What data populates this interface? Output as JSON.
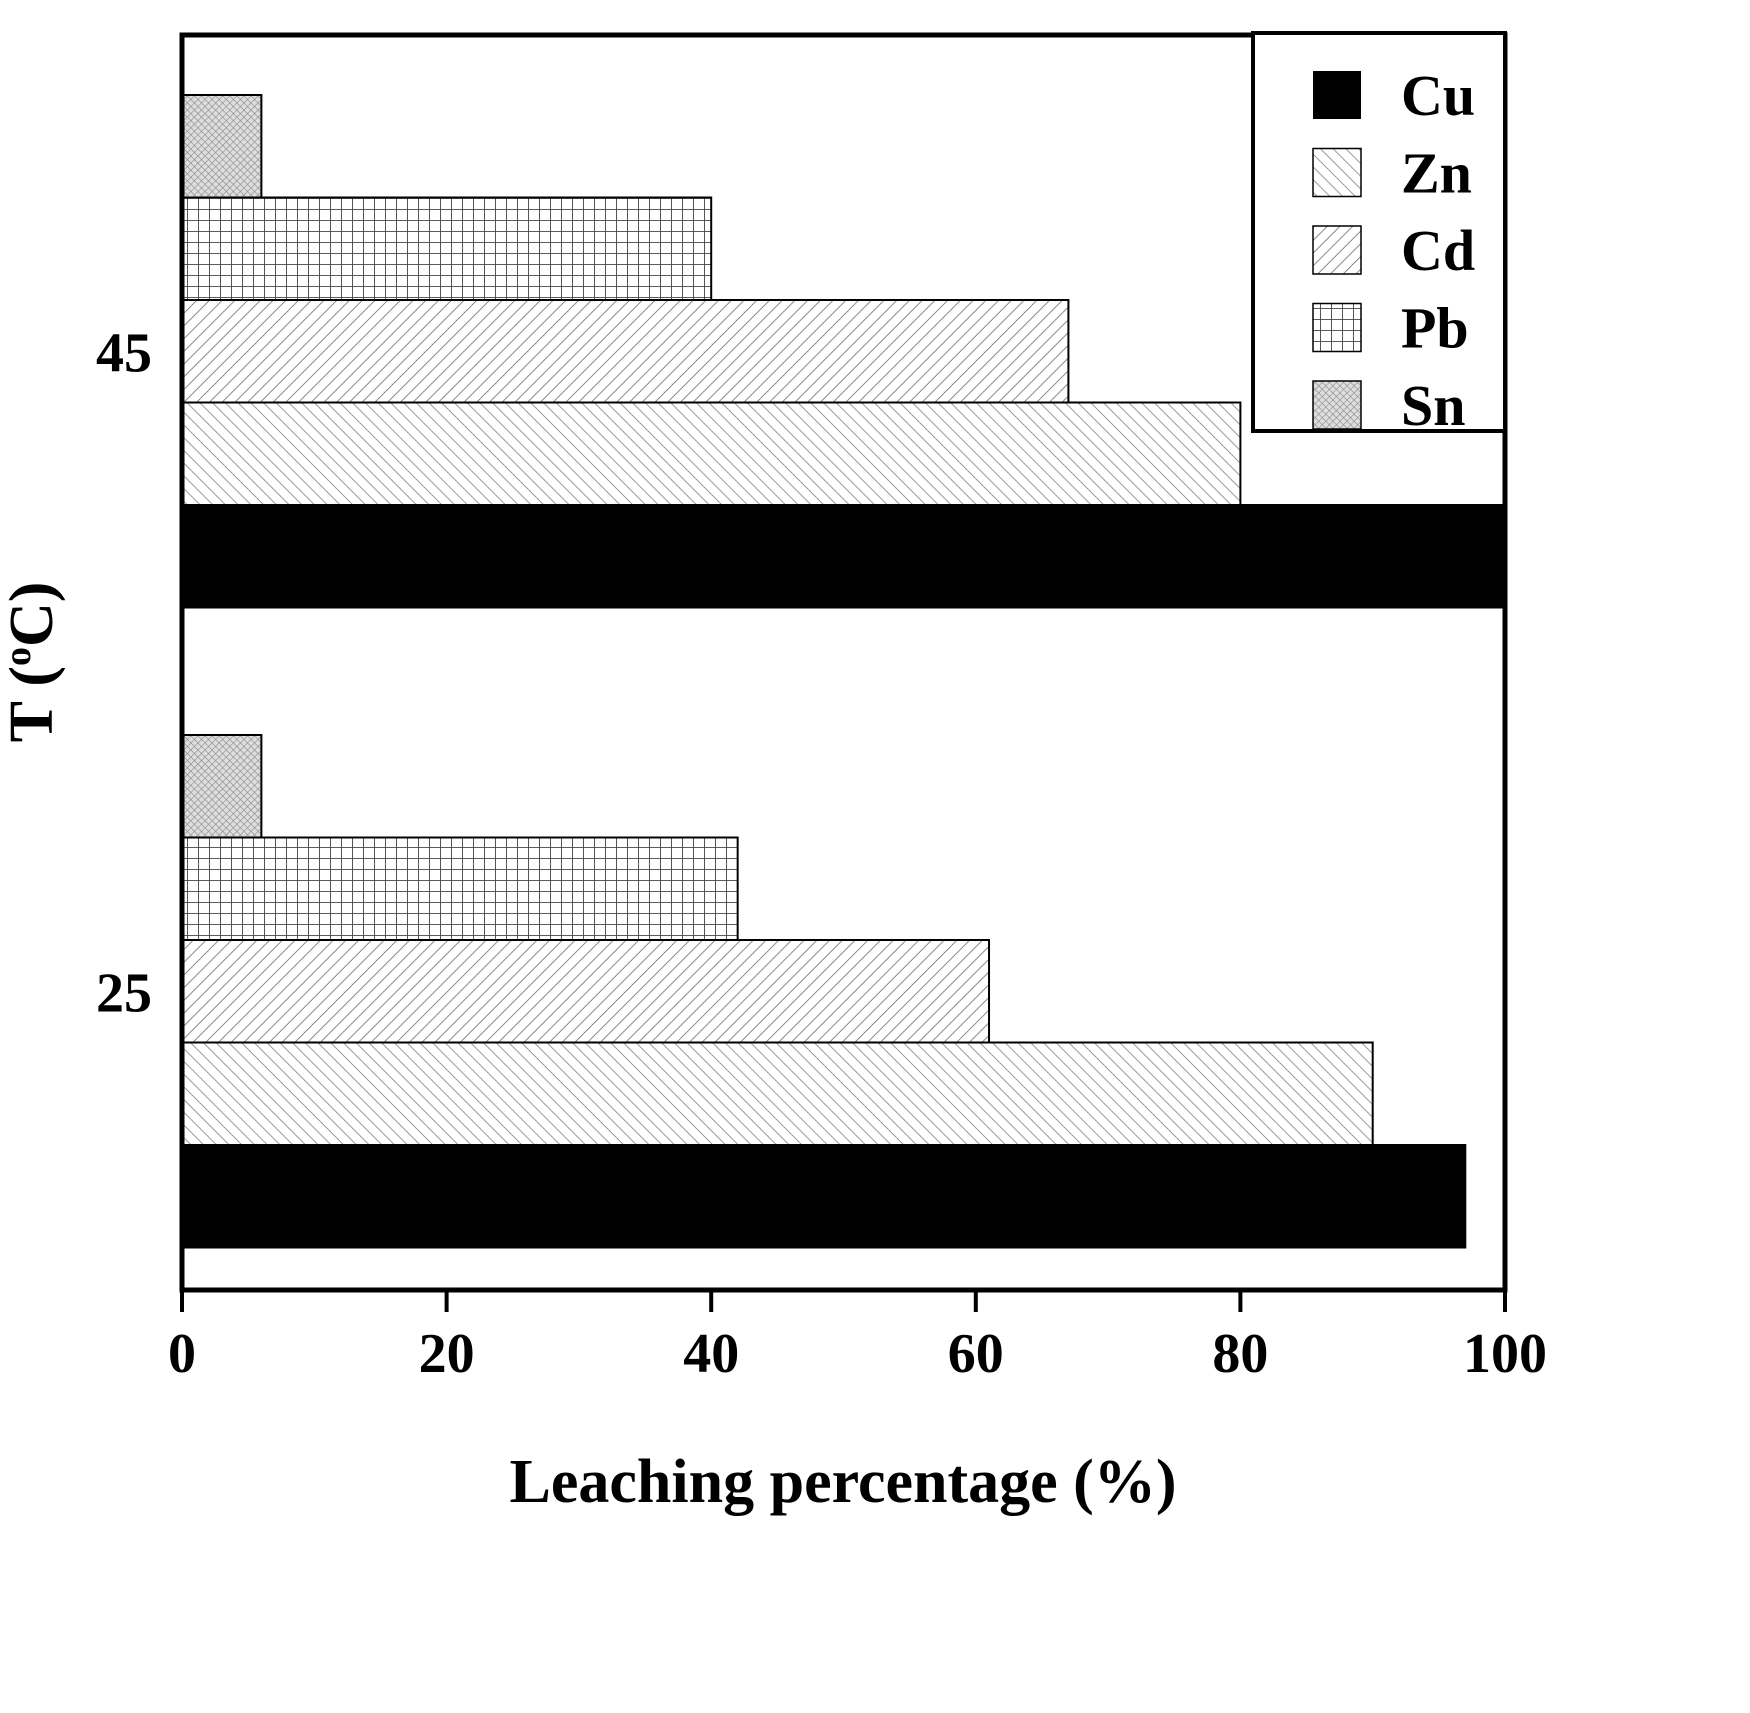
{
  "chart_data": {
    "type": "bar",
    "orientation": "horizontal",
    "title": "",
    "xlabel": "Leaching percentage (%)",
    "ylabel": "T (°C)",
    "ylabel_parts": {
      "pre": "T (",
      "sup": "o",
      "post": "C)"
    },
    "xlim": [
      0,
      100
    ],
    "x_ticks": [
      0,
      20,
      40,
      60,
      80,
      100
    ],
    "grid": false,
    "groups": [
      "45",
      "25"
    ],
    "bar_order_within_group_top_to_bottom": [
      "Sn",
      "Pb",
      "Cd",
      "Zn",
      "Cu"
    ],
    "series": [
      {
        "name": "Cu",
        "pattern": "solid-black",
        "values": [
          100,
          97
        ]
      },
      {
        "name": "Zn",
        "pattern": "diag-fine",
        "values": [
          80,
          90
        ]
      },
      {
        "name": "Cd",
        "pattern": "diag-hatch",
        "values": [
          67,
          61
        ]
      },
      {
        "name": "Pb",
        "pattern": "grid",
        "values": [
          40,
          42
        ]
      },
      {
        "name": "Sn",
        "pattern": "dense-cross",
        "values": [
          6,
          6
        ]
      }
    ],
    "legend": {
      "position": "top-right",
      "entries": [
        "Cu",
        "Zn",
        "Cd",
        "Pb",
        "Sn"
      ]
    },
    "colors": {
      "cu_fill": "#000000",
      "hatch_stroke": "#8a8a8a",
      "grid_stroke": "#444444",
      "sn_background": "#dedede",
      "axis": "#000000",
      "background": "#ffffff"
    }
  }
}
